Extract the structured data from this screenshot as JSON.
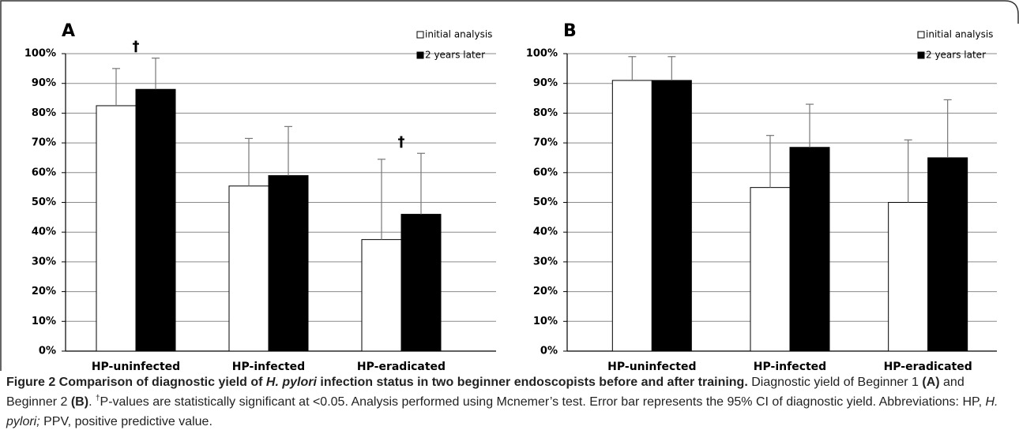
{
  "chart_data": [
    {
      "type": "bar",
      "panel": "A",
      "categories": [
        "HP-uninfected",
        "HP-infected",
        "HP-eradicated"
      ],
      "series": [
        {
          "name": "initial analysis",
          "color": "#ffffff",
          "values": [
            82.5,
            55.5,
            37.5
          ],
          "errors": [
            12.5,
            16,
            27
          ]
        },
        {
          "name": "2 years later",
          "color": "#000000",
          "values": [
            88,
            59,
            46
          ],
          "errors": [
            10.5,
            16.5,
            20.5
          ]
        }
      ],
      "ylim": [
        0,
        100
      ],
      "yticks": [
        {
          "value": 0,
          "label": "0%"
        },
        {
          "value": 10,
          "label": "10%"
        },
        {
          "value": 20,
          "label": "20%"
        },
        {
          "value": 30,
          "label": "30%"
        },
        {
          "value": 40,
          "label": "40%"
        },
        {
          "value": 50,
          "label": "50%"
        },
        {
          "value": 60,
          "label": "60%"
        },
        {
          "value": 70,
          "label": "70%"
        },
        {
          "value": 80,
          "label": "80%"
        },
        {
          "value": 90,
          "label": "90%"
        },
        {
          "value": 100,
          "label": "100%"
        }
      ],
      "grid": true,
      "legend": "upper right",
      "annotations": [
        {
          "text": "†",
          "category": 0
        },
        {
          "text": "†",
          "category": 2
        }
      ]
    },
    {
      "type": "bar",
      "panel": "B",
      "categories": [
        "HP-uninfected",
        "HP-infected",
        "HP-eradicated"
      ],
      "series": [
        {
          "name": "initial analysis",
          "color": "#ffffff",
          "values": [
            91,
            55,
            50
          ],
          "errors": [
            8,
            17.5,
            21
          ]
        },
        {
          "name": "2 years later",
          "color": "#000000",
          "values": [
            91,
            68.5,
            65
          ],
          "errors": [
            8,
            14.5,
            19.5
          ]
        }
      ],
      "ylim": [
        0,
        100
      ],
      "yticks": [
        {
          "value": 0,
          "label": "0%"
        },
        {
          "value": 10,
          "label": "10%"
        },
        {
          "value": 20,
          "label": "20%"
        },
        {
          "value": 30,
          "label": "30%"
        },
        {
          "value": 40,
          "label": "40%"
        },
        {
          "value": 50,
          "label": "50%"
        },
        {
          "value": 60,
          "label": "60%"
        },
        {
          "value": 70,
          "label": "70%"
        },
        {
          "value": 80,
          "label": "80%"
        },
        {
          "value": 90,
          "label": "90%"
        },
        {
          "value": 100,
          "label": "100%"
        }
      ],
      "grid": true,
      "legend": "upper right",
      "annotations": []
    }
  ],
  "caption": [
    {
      "text": "Figure 2 Comparison of diagnostic yield of ",
      "bold": true
    },
    {
      "text": "H. pylori",
      "bold": true,
      "italic": true
    },
    {
      "text": " infection status in two beginner endoscopists before and after training.",
      "bold": true
    },
    {
      "text": " Diagnostic yield of Beginner 1 "
    },
    {
      "text": "(A)",
      "bold": true
    },
    {
      "text": " and Beginner 2 "
    },
    {
      "text": "(B)",
      "bold": true
    },
    {
      "text": ". "
    },
    {
      "text": "†",
      "sup": true
    },
    {
      "text": "P-values are statistically significant at <0.05. Analysis performed using Mcnemer’s test. Error bar represents the 95% CI of diagnostic yield. Abbreviations: HP, "
    },
    {
      "text": "H. pylori;",
      "italic": true
    },
    {
      "text": " PPV, positive predictive value."
    }
  ]
}
